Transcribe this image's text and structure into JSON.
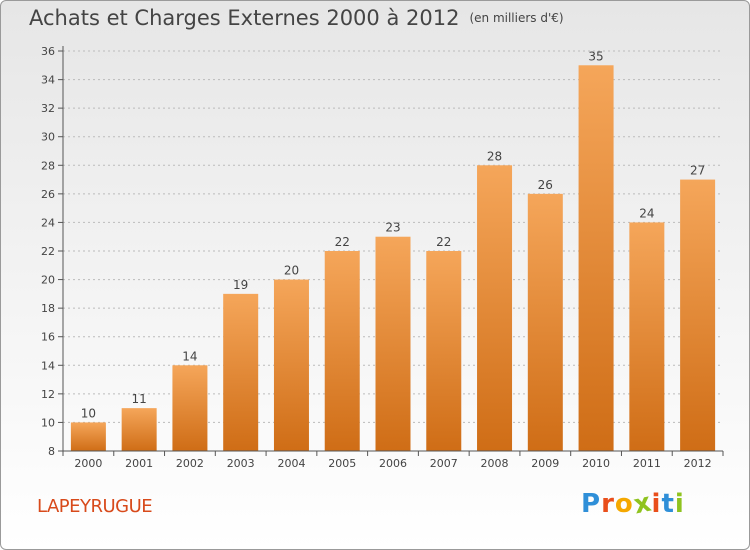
{
  "header": {
    "title": "Achats et Charges Externes 2000 à 2012",
    "unit": "(en milliers d'€)"
  },
  "footer": {
    "commune": "LAPEYRUGUE",
    "logo_letters": [
      "P",
      "r",
      "o",
      "x",
      "i",
      "t",
      "i"
    ],
    "logo_colors": [
      "#2f8fd8",
      "#e94e1b",
      "#f5a800",
      "#8fc31f",
      "#e94e1b",
      "#2f8fd8",
      "#8fc31f"
    ]
  },
  "colors": {
    "bar_top": "#f5a65a",
    "bar_bottom": "#cf6d16",
    "axis": "#555555",
    "grid": "#bbbbbb"
  },
  "chart_data": {
    "type": "bar",
    "title": "Achats et Charges Externes 2000 à 2012",
    "subtitle": "(en milliers d'€)",
    "categories": [
      "2000",
      "2001",
      "2002",
      "2003",
      "2004",
      "2005",
      "2006",
      "2007",
      "2008",
      "2009",
      "2010",
      "2011",
      "2012"
    ],
    "values": [
      10,
      11,
      14,
      19,
      20,
      22,
      23,
      22,
      28,
      26,
      35,
      24,
      27
    ],
    "ylim": [
      8,
      36
    ],
    "yticks": [
      8,
      10,
      12,
      14,
      16,
      18,
      20,
      22,
      24,
      26,
      28,
      30,
      32,
      34,
      36
    ],
    "grid": true,
    "legend": "none"
  }
}
